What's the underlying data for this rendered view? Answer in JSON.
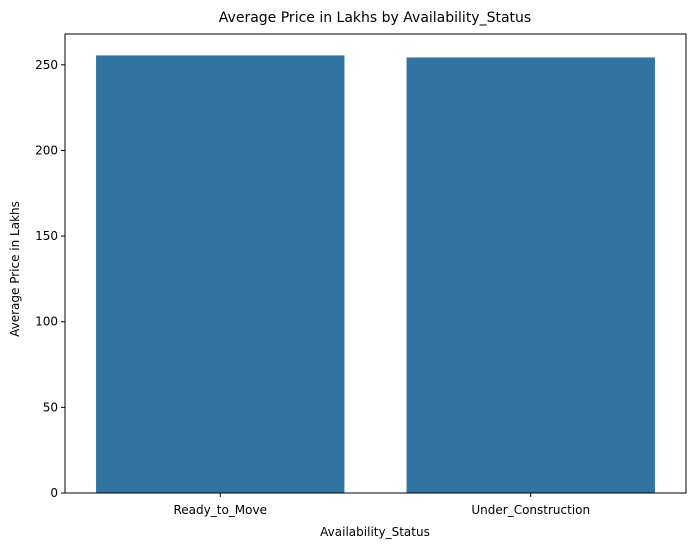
{
  "chart_data": {
    "type": "bar",
    "title": "Average Price in Lakhs by Availability_Status",
    "xlabel": "Availability_Status",
    "ylabel": "Average Price in Lakhs",
    "categories": [
      "Ready_to_Move",
      "Under_Construction"
    ],
    "values": [
      255.5,
      254.3
    ],
    "ylim": [
      0,
      268
    ],
    "yticks": [
      "0",
      "50",
      "100",
      "150",
      "200",
      "250"
    ],
    "grid": false,
    "bar_color": "#3274a1"
  }
}
